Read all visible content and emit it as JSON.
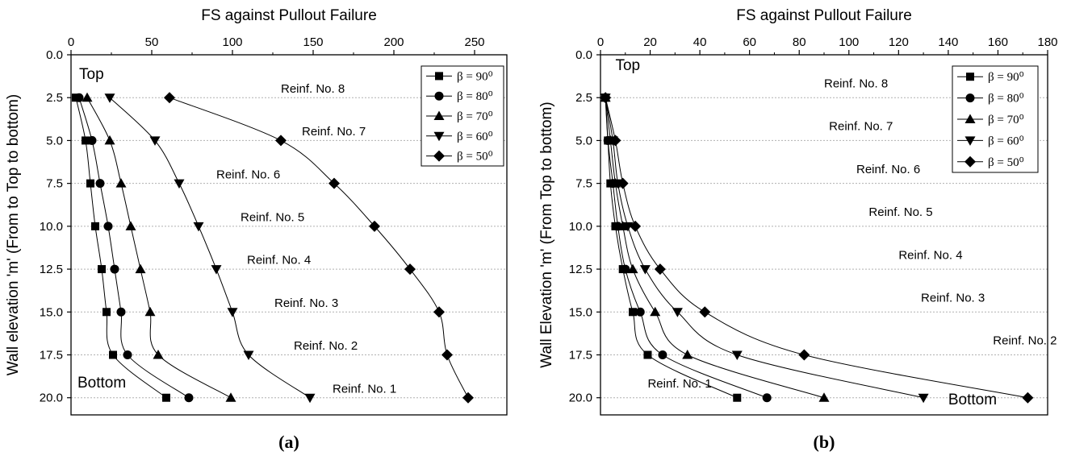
{
  "chart_data": [
    {
      "type": "line",
      "panel_label": "(a)",
      "xlabel": "FS against Pullout Failure",
      "ylabel": "Wall elevation 'm' (From to Top to bottom)",
      "xlim": [
        0,
        270
      ],
      "ylim": [
        0,
        21
      ],
      "x_ticks": [
        "0",
        "50",
        "100",
        "150",
        "200",
        "250"
      ],
      "x_ticks_minor": true,
      "y_inverted": true,
      "y_ticks": [
        "0.0",
        "2.5",
        "5.0",
        "7.5",
        "10.0",
        "12.5",
        "15.0",
        "17.5",
        "20.0"
      ],
      "x_axis_position": "top",
      "grid": "horizontal-dotted",
      "legend_position": "top-right",
      "annotations": [
        {
          "text": "Top",
          "x": 5,
          "y": 1.4
        },
        {
          "text": "Bottom",
          "x": 4,
          "y": 19.4
        },
        {
          "text": "Reinf. No. 8",
          "x": 130,
          "y": 2.2
        },
        {
          "text": "Reinf. No. 7",
          "x": 143,
          "y": 4.7
        },
        {
          "text": "Reinf. No. 6",
          "x": 90,
          "y": 7.2
        },
        {
          "text": "Reinf. No. 5",
          "x": 105,
          "y": 9.7
        },
        {
          "text": "Reinf. No. 4",
          "x": 109,
          "y": 12.2
        },
        {
          "text": "Reinf. No. 3",
          "x": 126,
          "y": 14.7
        },
        {
          "text": "Reinf. No. 2",
          "x": 138,
          "y": 17.2
        },
        {
          "text": "Reinf. No. 1",
          "x": 162,
          "y": 19.7
        }
      ],
      "y": [
        2.5,
        5.0,
        7.5,
        10.0,
        12.5,
        15.0,
        17.5,
        20.0
      ],
      "series": [
        {
          "name": "β = 90⁰",
          "marker": "square",
          "x": [
            3,
            9,
            12,
            15,
            19,
            22,
            26,
            59
          ]
        },
        {
          "name": "β = 80⁰",
          "marker": "circle",
          "x": [
            5,
            13,
            18,
            23,
            27,
            31,
            35,
            73
          ]
        },
        {
          "name": "β = 70⁰",
          "marker": "triangle-up",
          "x": [
            10,
            24,
            31,
            37,
            43,
            49,
            54,
            99
          ]
        },
        {
          "name": "β = 60⁰",
          "marker": "triangle-down",
          "x": [
            24,
            52,
            67,
            79,
            90,
            100,
            110,
            148
          ]
        },
        {
          "name": "β = 50⁰",
          "marker": "diamond",
          "x": [
            61,
            130,
            163,
            188,
            210,
            228,
            233,
            246
          ]
        }
      ]
    },
    {
      "type": "line",
      "panel_label": "(b)",
      "xlabel": "FS against Pullout Failure",
      "ylabel": "Wall Elevation 'm' (From Top to bottom)",
      "xlim": [
        0,
        180
      ],
      "ylim": [
        0,
        21
      ],
      "x_ticks": [
        "0",
        "20",
        "40",
        "60",
        "80",
        "100",
        "120",
        "140",
        "160",
        "180"
      ],
      "x_ticks_minor": true,
      "y_inverted": true,
      "y_ticks": [
        "0.0",
        "2.5",
        "5.0",
        "7.5",
        "10.0",
        "12.5",
        "15.0",
        "17.5",
        "20.0"
      ],
      "x_axis_position": "top",
      "grid": "horizontal-dotted",
      "legend_position": "top-right",
      "annotations": [
        {
          "text": "Top",
          "x": 6,
          "y": 0.9
        },
        {
          "text": "Bottom",
          "x": 140,
          "y": 20.4
        },
        {
          "text": "Reinf. No. 8",
          "x": 90,
          "y": 1.9
        },
        {
          "text": "Reinf. No. 7",
          "x": 92,
          "y": 4.4
        },
        {
          "text": "Reinf. No. 6",
          "x": 103,
          "y": 6.9
        },
        {
          "text": "Reinf. No. 5",
          "x": 108,
          "y": 9.4
        },
        {
          "text": "Reinf. No. 4",
          "x": 120,
          "y": 11.9
        },
        {
          "text": "Reinf. No. 3",
          "x": 129,
          "y": 14.4
        },
        {
          "text": "Reinf. No. 2",
          "x": 158,
          "y": 16.9
        },
        {
          "text": "Reinf. No. 1",
          "x": 19,
          "y": 19.4
        }
      ],
      "y": [
        2.5,
        5.0,
        7.5,
        10.0,
        12.5,
        15.0,
        17.5,
        20.0
      ],
      "series": [
        {
          "name": "β = 90⁰",
          "marker": "square",
          "x": [
            2,
            3,
            4,
            6,
            9,
            13,
            19,
            55
          ]
        },
        {
          "name": "β = 80⁰",
          "marker": "circle",
          "x": [
            2,
            3,
            5,
            7,
            10,
            16,
            25,
            67
          ]
        },
        {
          "name": "β = 70⁰",
          "marker": "triangle-up",
          "x": [
            2,
            4,
            6,
            9,
            13,
            22,
            35,
            90
          ]
        },
        {
          "name": "β = 60⁰",
          "marker": "triangle-down",
          "x": [
            2,
            5,
            7,
            11,
            18,
            31,
            55,
            130
          ]
        },
        {
          "name": "β = 50⁰",
          "marker": "diamond",
          "x": [
            2,
            6,
            9,
            14,
            24,
            42,
            82,
            172
          ]
        }
      ]
    }
  ]
}
